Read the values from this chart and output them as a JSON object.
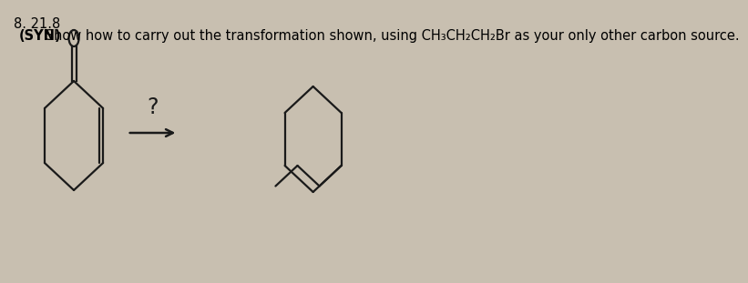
{
  "background_color": "#c8bfb0",
  "title_line1": "8. 21.8",
  "title_line2_bold": "(SYN)",
  "title_line2_rest": " Show how to carry out the transformation shown, using CH₃CH₂CH₂Br as your only other carbon source.",
  "title_fontsize": 10.5,
  "arrow_label": "?",
  "fig_width": 7.0,
  "fig_height": 2.91,
  "line_color": "#1a1a1a",
  "lw": 1.6
}
